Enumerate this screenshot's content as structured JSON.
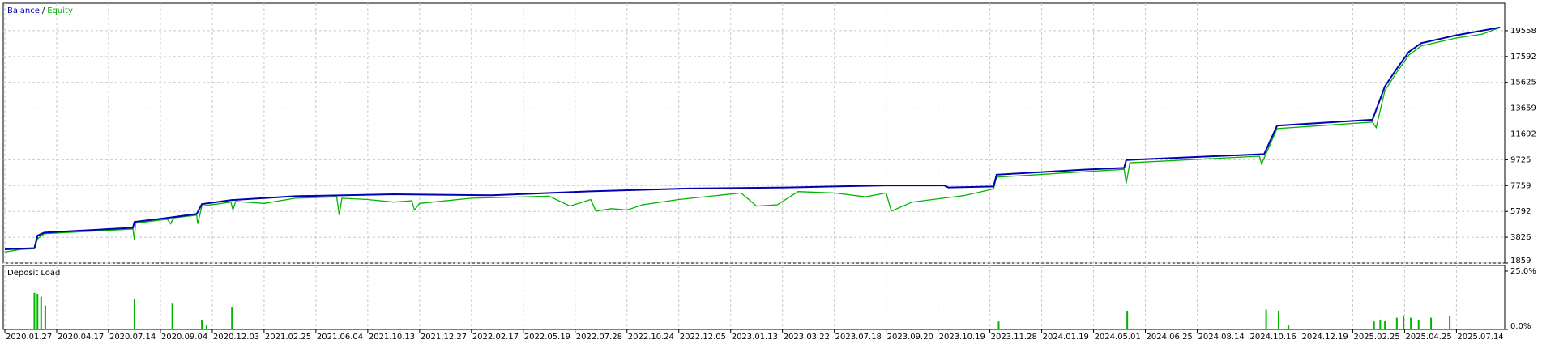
{
  "chart_data": [
    {
      "type": "line",
      "legend_separator": "/",
      "xlim": [
        0,
        28.9
      ],
      "ylim": [
        1859,
        21650
      ],
      "yticks": [
        19558,
        17592,
        15625,
        13659,
        11692,
        9725,
        7759,
        5792,
        3826,
        1859
      ],
      "grid": true,
      "series": [
        {
          "name": "Balance",
          "color": "#0000b4",
          "x": [
            0,
            0.57,
            0.63,
            0.76,
            2.47,
            2.5,
            3.13,
            3.7,
            3.8,
            4.36,
            5.6,
            7.5,
            9.39,
            11.29,
            13.19,
            15.09,
            16.98,
            18.12,
            18.2,
            19.07,
            19.13,
            20.78,
            21.59,
            21.63,
            24.29,
            24.54,
            26.38,
            26.62,
            26.85,
            27.08,
            27.32,
            27.99,
            28.84
          ],
          "values": [
            2906,
            3000,
            3950,
            4178,
            4550,
            5000,
            5300,
            5600,
            6345,
            6650,
            6950,
            7100,
            7020,
            7320,
            7540,
            7620,
            7770,
            7770,
            7620,
            7690,
            8590,
            8960,
            9110,
            9710,
            10160,
            12330,
            12780,
            15320,
            16670,
            17940,
            18610,
            19210,
            19810
          ]
        },
        {
          "name": "Equity",
          "color": "#00b400",
          "x": [
            0,
            0.3,
            0.57,
            0.63,
            0.76,
            2.47,
            2.5,
            2.52,
            3.13,
            3.2,
            3.25,
            3.7,
            3.72,
            3.8,
            4.36,
            4.4,
            4.45,
            5.0,
            5.6,
            6.4,
            6.45,
            6.5,
            7.0,
            7.5,
            7.85,
            7.9,
            8.0,
            9.0,
            10.5,
            10.9,
            11.3,
            11.4,
            11.7,
            12.0,
            12.3,
            13.0,
            14.2,
            14.5,
            14.9,
            15.3,
            16.0,
            16.6,
            17.0,
            17.1,
            17.5,
            18.5,
            19.07,
            19.13,
            20.78,
            21.59,
            21.63,
            21.7,
            24.2,
            24.24,
            24.54,
            26.38,
            26.45,
            26.62,
            26.85,
            27.08,
            27.32,
            27.99,
            28.5,
            28.84
          ],
          "values": [
            2700,
            2900,
            2950,
            3700,
            4100,
            4450,
            3580,
            4900,
            5200,
            4850,
            5300,
            5500,
            4850,
            6200,
            6500,
            5900,
            6550,
            6400,
            6800,
            6900,
            5520,
            6800,
            6700,
            6500,
            6600,
            5900,
            6400,
            6800,
            6950,
            6200,
            6700,
            5820,
            6000,
            5900,
            6300,
            6700,
            7200,
            6200,
            6300,
            7300,
            7200,
            6900,
            7200,
            5820,
            6500,
            7000,
            7500,
            8400,
            8800,
            9000,
            7920,
            9500,
            10000,
            9410,
            12100,
            12600,
            12180,
            15000,
            16400,
            17700,
            18400,
            19000,
            19300,
            19800
          ]
        }
      ]
    },
    {
      "type": "bar",
      "title": "Deposit Load",
      "color": "#00b400",
      "xlim": [
        0,
        28.9
      ],
      "ylim": [
        0,
        25
      ],
      "yticks": [
        {
          "value": 25,
          "label": "25.0%"
        },
        {
          "value": 0,
          "label": "0.0%"
        }
      ],
      "grid": true,
      "xticks": [
        {
          "value": 0,
          "label": "2020.01.27"
        },
        {
          "value": 1,
          "label": "2020.04.17"
        },
        {
          "value": 2,
          "label": "2020.07.14"
        },
        {
          "value": 3,
          "label": "2020.09.04"
        },
        {
          "value": 4,
          "label": "2020.12.03"
        },
        {
          "value": 5,
          "label": "2021.02.25"
        },
        {
          "value": 6,
          "label": "2021.06.04"
        },
        {
          "value": 7,
          "label": "2021.10.13"
        },
        {
          "value": 8,
          "label": "2021.12.27"
        },
        {
          "value": 9,
          "label": "2022.02.17"
        },
        {
          "value": 10,
          "label": "2022.05.19"
        },
        {
          "value": 11,
          "label": "2022.07.28"
        },
        {
          "value": 12,
          "label": "2022.10.24"
        },
        {
          "value": 13,
          "label": "2022.12.05"
        },
        {
          "value": 14,
          "label": "2023.01.13"
        },
        {
          "value": 15,
          "label": "2023.03.22"
        },
        {
          "value": 16,
          "label": "2023.07.18"
        },
        {
          "value": 17,
          "label": "2023.09.20"
        },
        {
          "value": 18,
          "label": "2023.10.19"
        },
        {
          "value": 19,
          "label": "2023.11.28"
        },
        {
          "value": 20,
          "label": "2024.01.19"
        },
        {
          "value": 21,
          "label": "2024.05.01"
        },
        {
          "value": 22,
          "label": "2024.06.25"
        },
        {
          "value": 23,
          "label": "2024.08.14"
        },
        {
          "value": 24,
          "label": "2024.10.16"
        },
        {
          "value": 25,
          "label": "2024.12.19"
        },
        {
          "value": 26,
          "label": "2025.02.25"
        },
        {
          "value": 27,
          "label": "2025.04.25"
        },
        {
          "value": 28,
          "label": "2025.07.14"
        }
      ],
      "x": [
        0.57,
        0.63,
        0.7,
        0.78,
        2.5,
        3.23,
        3.8,
        3.89,
        4.38,
        19.17,
        21.65,
        24.33,
        24.57,
        24.76,
        26.41,
        26.53,
        26.62,
        26.85,
        26.98,
        27.12,
        27.27,
        27.51,
        27.87
      ],
      "values": [
        15.7,
        15.3,
        14,
        10.2,
        13,
        11.4,
        4.2,
        1.7,
        9.7,
        3.4,
        8,
        8.5,
        8,
        1.7,
        3.4,
        4.2,
        3.8,
        5,
        6,
        5,
        4.2,
        5,
        5.5
      ]
    }
  ]
}
